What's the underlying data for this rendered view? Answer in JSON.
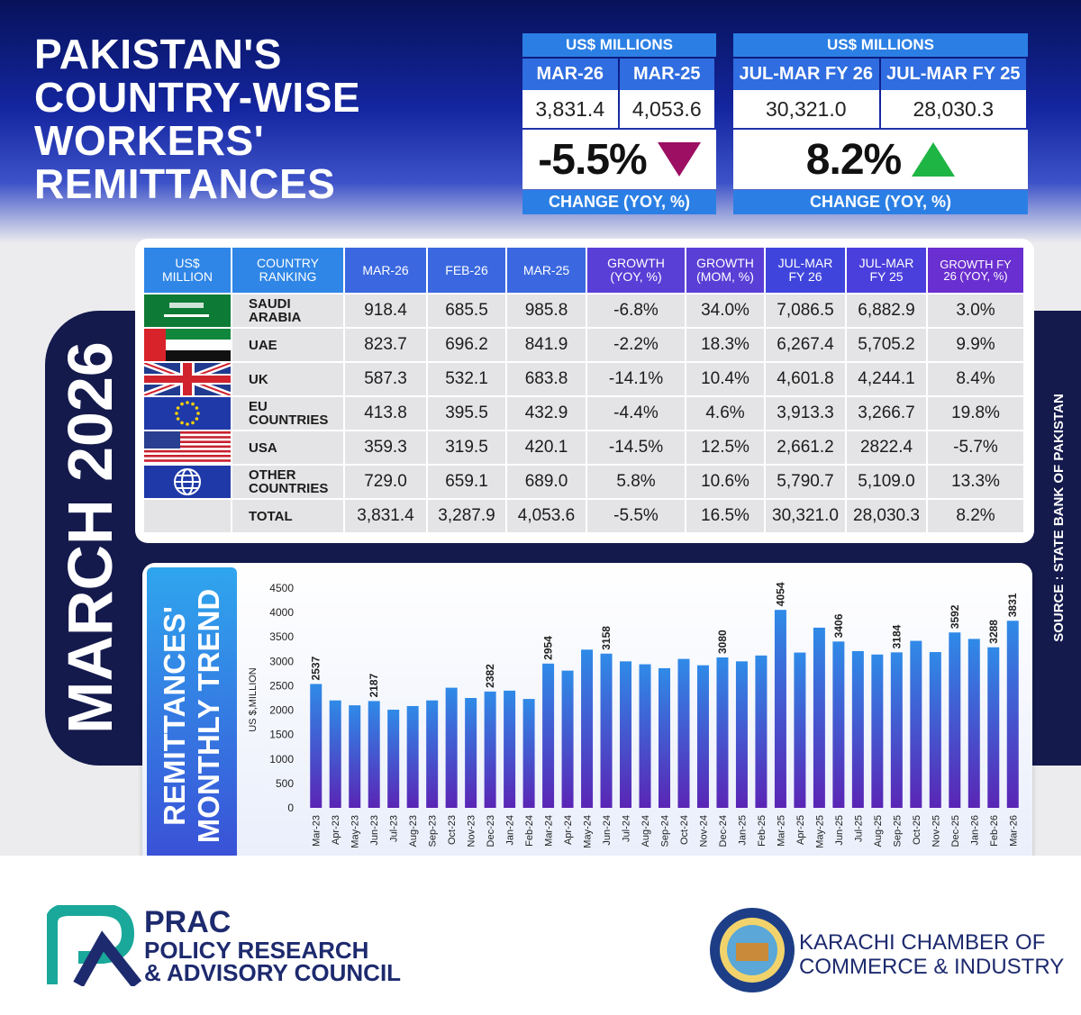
{
  "header": {
    "title_lines": [
      "PAKISTAN'S",
      "COUNTRY-WISE",
      "WORKERS'",
      "REMITTANCES"
    ]
  },
  "summary": [
    {
      "unit": "US$ MILLIONS",
      "columns": [
        "MAR-26",
        "MAR-25"
      ],
      "values": [
        "3,831.4",
        "4,053.6"
      ],
      "change": "-5.5%",
      "change_label": "CHANGE (YOY, %)",
      "direction": "down"
    },
    {
      "unit": "US$ MILLIONS",
      "columns": [
        "JUL-MAR FY 26",
        "JUL-MAR FY 25"
      ],
      "values": [
        "30,321.0",
        "28,030.3"
      ],
      "change": "8.2%",
      "change_label": "CHANGE (YOY, %)",
      "direction": "up"
    }
  ],
  "side_label": "MARCH 2026",
  "source": "SOURCE : STATE BANK OF PAKISTAN",
  "table": {
    "columns": [
      "US$ MILLION",
      "COUNTRY RANKING",
      "MAR-26",
      "FEB-26",
      "MAR-25",
      "GROWTH (YOY, %)",
      "GROWTH (MOM, %)",
      "JUL-MAR FY 26",
      "JUL-MAR FY 25",
      "GROWTH FY 26 (YOY, %)"
    ],
    "rows": [
      [
        "SAUDI ARABIA",
        "918.4",
        "685.5",
        "985.8",
        "-6.8%",
        "34.0%",
        "7,086.5",
        "6,882.9",
        "3.0%"
      ],
      [
        "UAE",
        "823.7",
        "696.2",
        "841.9",
        "-2.2%",
        "18.3%",
        "6,267.4",
        "5,705.2",
        "9.9%"
      ],
      [
        "UK",
        "587.3",
        "532.1",
        "683.8",
        "-14.1%",
        "10.4%",
        "4,601.8",
        "4,244.1",
        "8.4%"
      ],
      [
        "EU COUNTRIES",
        "413.8",
        "395.5",
        "432.9",
        "-4.4%",
        "4.6%",
        "3,913.3",
        "3,266.7",
        "19.8%"
      ],
      [
        "USA",
        "359.3",
        "319.5",
        "420.1",
        "-14.5%",
        "12.5%",
        "2,661.2",
        "2822.4",
        "-5.7%"
      ],
      [
        "OTHER COUNTRIES",
        "729.0",
        "659.1",
        "689.0",
        "5.8%",
        "10.6%",
        "5,790.7",
        "5,109.0",
        "13.3%"
      ],
      [
        "TOTAL",
        "3,831.4",
        "3,287.9",
        "4,053.6",
        "-5.5%",
        "16.5%",
        "30,321.0",
        "28,030.3",
        "8.2%"
      ]
    ]
  },
  "chart_data": {
    "type": "bar",
    "title": "REMITTANCES' MONTHLY TREND",
    "y_label": "US $,MILLION",
    "categories": [
      "Mar-23",
      "Apr-23",
      "May-23",
      "Jun-23",
      "Jul-23",
      "Aug-23",
      "Sep-23",
      "Oct-23",
      "Nov-23",
      "Dec-23",
      "Jan-24",
      "Feb-24",
      "Mar-24",
      "Apr-24",
      "May-24",
      "Jun-24",
      "Jul-24",
      "Aug-24",
      "Sep-24",
      "Oct-24",
      "Nov-24",
      "Dec-24",
      "Jan-25",
      "Feb-25",
      "Mar-25",
      "Apr-25",
      "May-25",
      "Jun-25",
      "Jul-25",
      "Aug-25",
      "Sep-25",
      "Oct-25",
      "Nov-25",
      "Dec-25",
      "Jan-26",
      "Feb-26",
      "Mar-26"
    ],
    "values": [
      2537,
      2200,
      2100,
      2187,
      2010,
      2085,
      2200,
      2460,
      2250,
      2382,
      2400,
      2230,
      2954,
      2810,
      3240,
      3158,
      3000,
      2940,
      2860,
      3050,
      2920,
      3080,
      3000,
      3120,
      4054,
      3180,
      3690,
      3406,
      3210,
      3140,
      3184,
      3420,
      3190,
      3592,
      3460,
      3288,
      3831
    ],
    "value_labels": [
      "2537",
      null,
      null,
      "2187",
      null,
      null,
      null,
      null,
      null,
      "2382",
      null,
      null,
      "2954",
      null,
      null,
      "3158",
      null,
      null,
      null,
      null,
      null,
      "3080",
      null,
      null,
      "4054",
      null,
      null,
      "3406",
      null,
      null,
      "3184",
      null,
      null,
      "3592",
      null,
      "3288",
      "3831"
    ],
    "ylim": [
      0,
      4500
    ],
    "yticks": [
      0,
      500,
      1000,
      1500,
      2000,
      2500,
      3000,
      3500,
      4000,
      4500
    ],
    "grid": false,
    "colors": [
      "#2f8ae8",
      "#5a25b5"
    ]
  },
  "footer": {
    "prac": {
      "name": "PRAC",
      "lines": [
        "POLICY RESEARCH",
        "& ADVISORY COUNCIL"
      ]
    },
    "kcci": {
      "lines": [
        "KARACHI CHAMBER OF",
        "COMMERCE & INDUSTRY"
      ]
    }
  }
}
